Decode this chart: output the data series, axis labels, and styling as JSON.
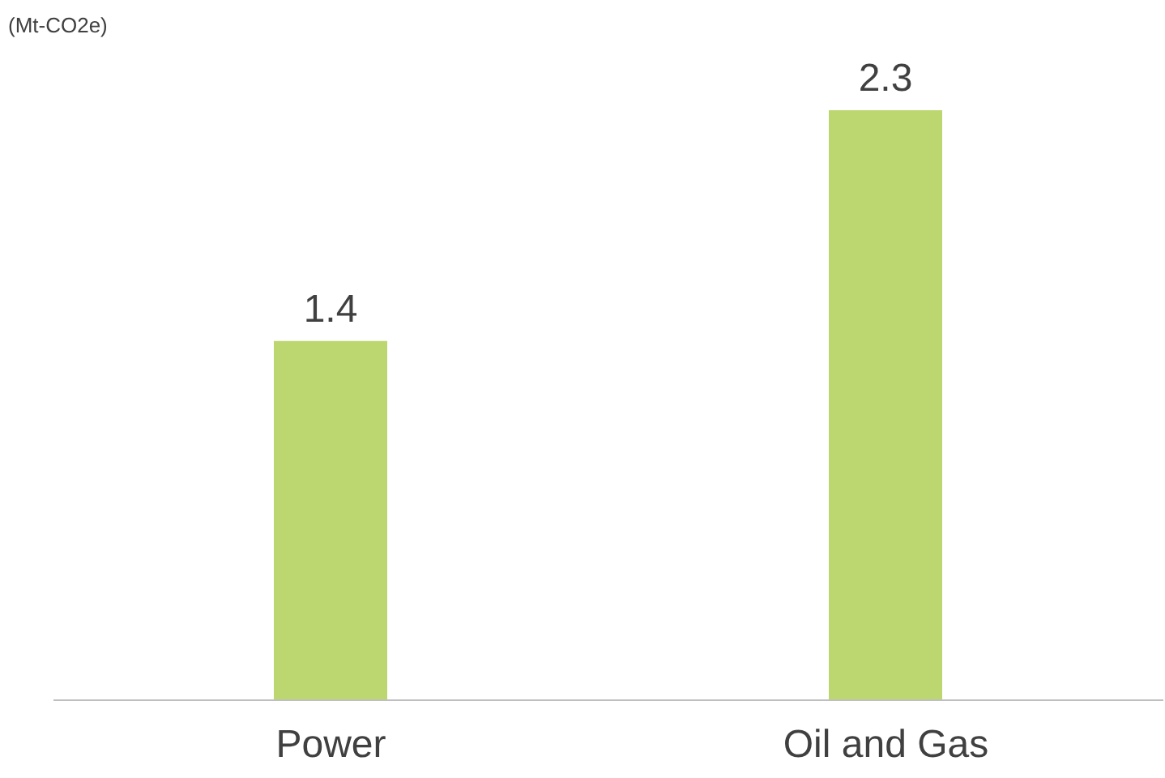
{
  "chart_data": {
    "type": "bar",
    "ylabel": "(Mt-CO2e)",
    "categories": [
      "Power",
      "Oil and Gas"
    ],
    "values": [
      1.4,
      2.3
    ],
    "color": "#bdd770",
    "data_labels": true
  }
}
